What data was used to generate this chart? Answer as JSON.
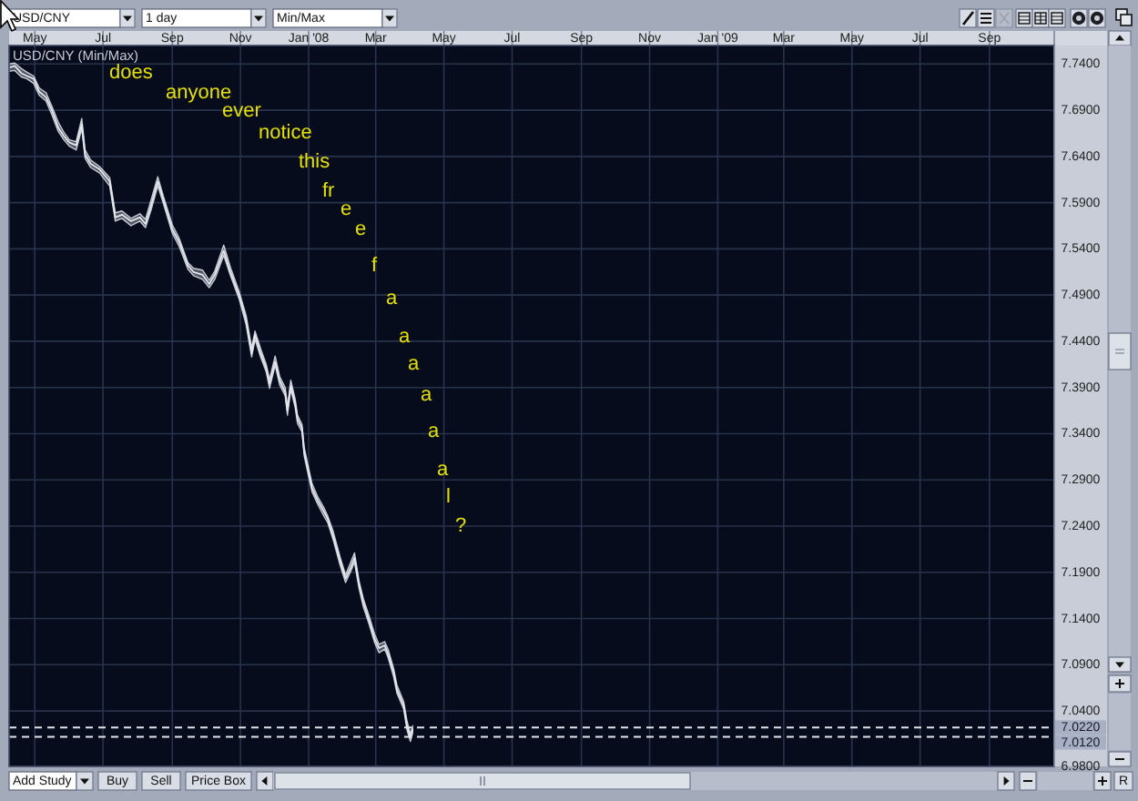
{
  "chart_data": {
    "type": "line",
    "title": "USD/CNY (Min/Max)",
    "annotations": [
      "USD/CNY",
      "1 day",
      "Min/Max",
      "does",
      "anyone",
      "ever",
      "notice",
      "this",
      "fr",
      "e",
      "e",
      "f",
      "a",
      "a",
      "a",
      "a",
      "a",
      "a",
      "l",
      "?",
      "Add Study",
      "Buy",
      "Sell",
      "Price Box",
      "R"
    ],
    "x": [
      "2007-04-08",
      "2007-04-13",
      "2007-04-19",
      "2007-04-24",
      "2007-04-30",
      "2007-05-05",
      "2007-05-11",
      "2007-05-16",
      "2007-05-22",
      "2007-05-27",
      "2007-06-01",
      "2007-06-07",
      "2007-06-12",
      "2007-06-15",
      "2007-06-20",
      "2007-06-28",
      "2007-07-07",
      "2007-07-12",
      "2007-07-18",
      "2007-07-26",
      "2007-08-03",
      "2007-08-08",
      "2007-08-13",
      "2007-08-19",
      "2007-08-24",
      "2007-09-01",
      "2007-09-07",
      "2007-09-15",
      "2007-09-20",
      "2007-09-28",
      "2007-10-04",
      "2007-10-09",
      "2007-10-17",
      "2007-10-23",
      "2007-10-31",
      "2007-11-06",
      "2007-11-11",
      "2007-11-14",
      "2007-11-19",
      "2007-11-24",
      "2007-11-27",
      "2007-12-02",
      "2007-12-06",
      "2007-12-11",
      "2007-12-13",
      "2007-12-16",
      "2007-12-20",
      "2007-12-22",
      "2007-12-26",
      "2007-12-28",
      "2007-12-31",
      "2008-01-04",
      "2008-01-09",
      "2008-01-15",
      "2008-01-18",
      "2008-01-23",
      "2008-01-29",
      "2008-02-03",
      "2008-02-08",
      "2008-02-11",
      "2008-02-15",
      "2008-02-19",
      "2008-02-24",
      "2008-02-29",
      "2008-03-04",
      "2008-03-09",
      "2008-03-12",
      "2008-03-17",
      "2008-03-20",
      "2008-03-26",
      "2008-03-29",
      "2008-04-01",
      "2008-04-03"
    ],
    "series": [
      {
        "color": "#e4e7ee",
        "values": [
          7.736,
          7.738,
          7.73,
          7.727,
          7.724,
          7.71,
          7.704,
          7.691,
          7.671,
          7.662,
          7.655,
          7.652,
          7.675,
          7.642,
          7.632,
          7.626,
          7.613,
          7.574,
          7.577,
          7.57,
          7.574,
          7.567,
          7.587,
          7.613,
          7.593,
          7.561,
          7.548,
          7.522,
          7.515,
          7.512,
          7.502,
          7.512,
          7.538,
          7.515,
          7.489,
          7.463,
          7.427,
          7.447,
          7.427,
          7.411,
          7.394,
          7.418,
          7.398,
          7.385,
          7.365,
          7.392,
          7.372,
          7.356,
          7.346,
          7.32,
          7.304,
          7.281,
          7.268,
          7.255,
          7.248,
          7.229,
          7.203,
          7.183,
          7.196,
          7.206,
          7.177,
          7.157,
          7.138,
          7.118,
          7.108,
          7.111,
          7.102,
          7.082,
          7.063,
          7.046,
          7.024,
          7.011,
          7.02
        ],
        "upper": [
          7.74,
          7.741,
          7.735,
          7.731,
          7.727,
          7.714,
          7.709,
          7.695,
          7.677,
          7.666,
          7.658,
          7.656,
          7.681,
          7.647,
          7.636,
          7.629,
          7.617,
          7.579,
          7.581,
          7.573,
          7.578,
          7.572,
          7.593,
          7.618,
          7.597,
          7.566,
          7.552,
          7.525,
          7.519,
          7.517,
          7.506,
          7.516,
          7.544,
          7.52,
          7.493,
          7.468,
          7.433,
          7.451,
          7.432,
          7.415,
          7.399,
          7.424,
          7.402,
          7.39,
          7.369,
          7.398,
          7.377,
          7.36,
          7.35,
          7.325,
          7.308,
          7.286,
          7.272,
          7.259,
          7.251,
          7.234,
          7.207,
          7.187,
          7.202,
          7.211,
          7.181,
          7.161,
          7.143,
          7.123,
          7.112,
          7.115,
          7.107,
          7.086,
          7.068,
          7.05,
          7.029,
          7.015,
          7.024
        ],
        "lower": [
          7.732,
          7.733,
          7.726,
          7.724,
          7.719,
          7.706,
          7.7,
          7.686,
          7.667,
          7.658,
          7.651,
          7.647,
          7.67,
          7.638,
          7.628,
          7.622,
          7.608,
          7.57,
          7.573,
          7.565,
          7.57,
          7.563,
          7.582,
          7.608,
          7.589,
          7.557,
          7.543,
          7.518,
          7.511,
          7.507,
          7.498,
          7.507,
          7.533,
          7.511,
          7.485,
          7.458,
          7.423,
          7.442,
          7.423,
          7.407,
          7.389,
          7.414,
          7.393,
          7.381,
          7.36,
          7.388,
          7.368,
          7.351,
          7.342,
          7.316,
          7.299,
          7.277,
          7.264,
          7.25,
          7.244,
          7.225,
          7.198,
          7.179,
          7.192,
          7.201,
          7.173,
          7.152,
          7.134,
          7.114,
          7.103,
          7.107,
          7.098,
          7.077,
          7.059,
          7.042,
          7.019,
          7.007,
          7.016
        ]
      }
    ],
    "xlim": [
      "2007-04-08",
      "2009-10-29"
    ],
    "xticks": [
      {
        "value": "2007-05-01",
        "label": "May"
      },
      {
        "value": "2007-07-01",
        "label": "Jul"
      },
      {
        "value": "2007-09-01",
        "label": "Sep"
      },
      {
        "value": "2007-11-01",
        "label": "Nov"
      },
      {
        "value": "2008-01-01",
        "label": "Jan '08"
      },
      {
        "value": "2008-03-01",
        "label": "Mar"
      },
      {
        "value": "2008-05-01",
        "label": "May"
      },
      {
        "value": "2008-07-01",
        "label": "Jul"
      },
      {
        "value": "2008-09-01",
        "label": "Sep"
      },
      {
        "value": "2008-11-01",
        "label": "Nov"
      },
      {
        "value": "2009-01-01",
        "label": "Jan '09"
      },
      {
        "value": "2009-03-01",
        "label": "Mar"
      },
      {
        "value": "2009-05-01",
        "label": "May"
      },
      {
        "value": "2009-07-01",
        "label": "Jul"
      },
      {
        "value": "2009-09-01",
        "label": "Sep"
      }
    ],
    "ylim": [
      6.98,
      7.76
    ],
    "yticks": [
      {
        "value": 7.74,
        "label": "7.7400"
      },
      {
        "value": 7.69,
        "label": "7.6900"
      },
      {
        "value": 7.64,
        "label": "7.6400"
      },
      {
        "value": 7.59,
        "label": "7.5900"
      },
      {
        "value": 7.54,
        "label": "7.5400"
      },
      {
        "value": 7.49,
        "label": "7.4900"
      },
      {
        "value": 7.44,
        "label": "7.4400"
      },
      {
        "value": 7.39,
        "label": "7.3900"
      },
      {
        "value": 7.34,
        "label": "7.3400"
      },
      {
        "value": 7.29,
        "label": "7.2900"
      },
      {
        "value": 7.24,
        "label": "7.2400"
      },
      {
        "value": 7.19,
        "label": "7.1900"
      },
      {
        "value": 7.14,
        "label": "7.1400"
      },
      {
        "value": 7.09,
        "label": "7.0900"
      },
      {
        "value": 7.04,
        "label": "7.0400"
      },
      {
        "value": 6.98,
        "label": "6.9800"
      }
    ],
    "ref_lines": [
      {
        "axis": "y",
        "value": 7.022,
        "label": "7.0220",
        "color": "#dfe3ea",
        "line_style": "dashed"
      },
      {
        "axis": "y",
        "value": 7.012,
        "label": "7.0120",
        "color": "#dfe3ea",
        "line_style": "dashed"
      }
    ],
    "grid": true
  }
}
